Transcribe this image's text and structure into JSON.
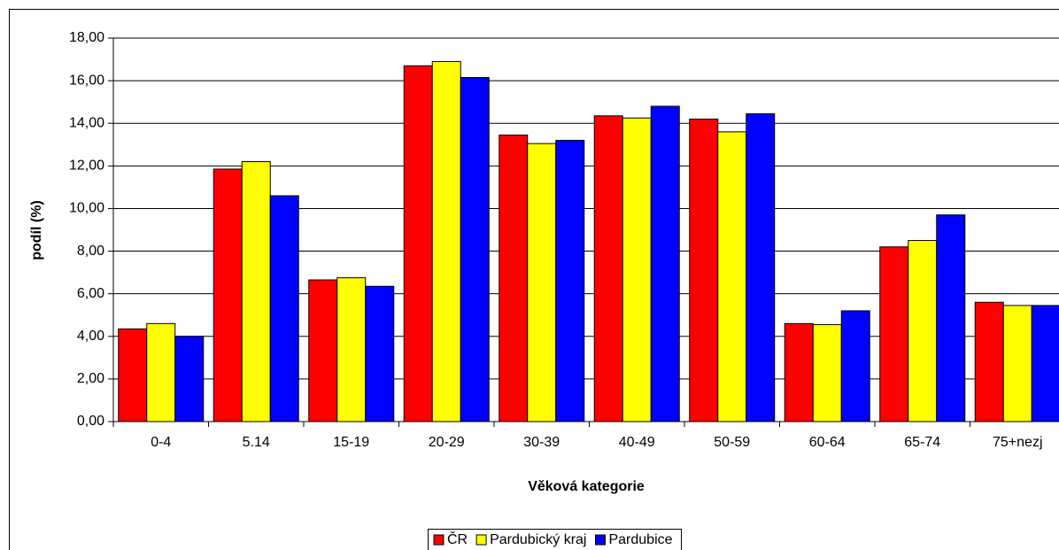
{
  "chart_data": {
    "type": "bar",
    "x_label": "Věková kategorie",
    "y_label": "podíl (%)",
    "categories": [
      "0-4",
      "5.14",
      "15-19",
      "20-29",
      "30-39",
      "40-49",
      "50-59",
      "60-64",
      "65-74",
      "75+nezj"
    ],
    "series": [
      {
        "name": "ČR",
        "color": "#ff0000",
        "values": [
          4.35,
          11.85,
          6.65,
          16.7,
          13.45,
          14.35,
          14.2,
          4.6,
          8.2,
          5.6
        ]
      },
      {
        "name": "Pardubický kraj",
        "color": "#ffff00",
        "values": [
          4.6,
          12.2,
          6.75,
          16.9,
          13.05,
          14.25,
          13.6,
          4.55,
          8.5,
          5.45
        ]
      },
      {
        "name": "Pardubice",
        "color": "#0000ff",
        "values": [
          4.0,
          10.6,
          6.35,
          16.15,
          13.2,
          14.8,
          14.45,
          5.2,
          9.7,
          5.45
        ]
      }
    ],
    "ylim": [
      0,
      18
    ],
    "yticks": [
      {
        "value": 0,
        "label": "0,00"
      },
      {
        "value": 2,
        "label": "2,00"
      },
      {
        "value": 4,
        "label": "4,00"
      },
      {
        "value": 6,
        "label": "6,00"
      },
      {
        "value": 8,
        "label": "8,00"
      },
      {
        "value": 10,
        "label": "10,00"
      },
      {
        "value": 12,
        "label": "12,00"
      },
      {
        "value": 14,
        "label": "14,00"
      },
      {
        "value": 16,
        "label": "16,00"
      },
      {
        "value": 18,
        "label": "18,00"
      }
    ],
    "grid": true,
    "legend": "bottom"
  }
}
